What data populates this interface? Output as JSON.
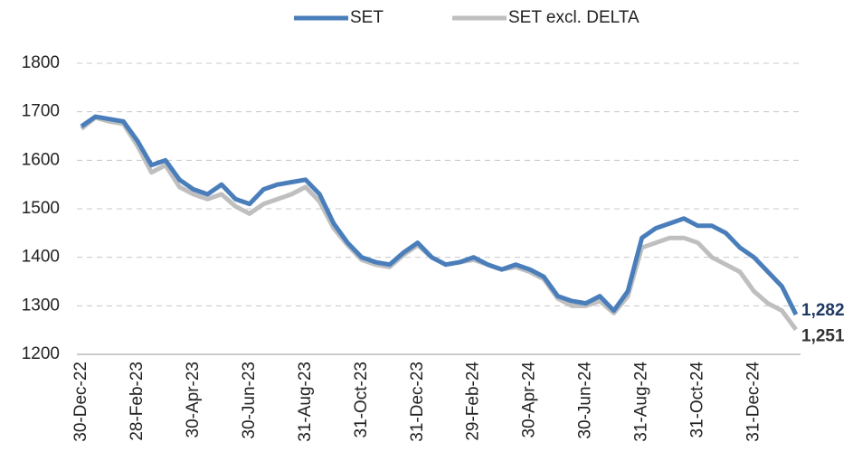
{
  "chart_data": {
    "type": "line",
    "categories": [
      "30-Dec-22",
      null,
      null,
      null,
      "28-Feb-23",
      null,
      null,
      null,
      "30-Apr-23",
      null,
      null,
      null,
      "30-Jun-23",
      null,
      null,
      null,
      "31-Aug-23",
      null,
      null,
      null,
      "31-Oct-23",
      null,
      null,
      null,
      "31-Dec-23",
      null,
      null,
      null,
      "29-Feb-24",
      null,
      null,
      null,
      "30-Apr-24",
      null,
      null,
      null,
      "30-Jun-24",
      null,
      null,
      null,
      "31-Aug-24",
      null,
      null,
      null,
      "31-Oct-24",
      null,
      null,
      null,
      "31-Dec-24",
      null,
      null,
      null
    ],
    "series": [
      {
        "name": "SET",
        "color": "#4a7ebb",
        "label_color": "#1f3864",
        "values": [
          1670,
          1690,
          1685,
          1680,
          1640,
          1590,
          1600,
          1560,
          1540,
          1530,
          1550,
          1520,
          1510,
          1540,
          1550,
          1555,
          1560,
          1530,
          1470,
          1430,
          1400,
          1390,
          1385,
          1410,
          1430,
          1400,
          1385,
          1390,
          1400,
          1385,
          1375,
          1385,
          1375,
          1360,
          1320,
          1310,
          1305,
          1320,
          1290,
          1330,
          1440,
          1460,
          1470,
          1480,
          1465,
          1465,
          1450,
          1420,
          1400,
          1370,
          1340,
          1282
        ],
        "value_labels": [
          null,
          null,
          null,
          null,
          null,
          null,
          null,
          null,
          null,
          null,
          null,
          null,
          null,
          null,
          null,
          null,
          null,
          null,
          null,
          null,
          null,
          null,
          null,
          null,
          null,
          null,
          null,
          null,
          null,
          null,
          null,
          null,
          null,
          null,
          null,
          null,
          null,
          null,
          null,
          null,
          null,
          null,
          null,
          null,
          null,
          null,
          null,
          null,
          null,
          null,
          null,
          "1,282"
        ]
      },
      {
        "name": "SET excl. DELTA",
        "color": "#bfbfbf",
        "label_color": "#333333",
        "values": [
          1665,
          1688,
          1680,
          1675,
          1630,
          1575,
          1590,
          1545,
          1530,
          1520,
          1530,
          1505,
          1490,
          1510,
          1520,
          1530,
          1545,
          1515,
          1460,
          1425,
          1395,
          1385,
          1380,
          1405,
          1425,
          1400,
          1385,
          1390,
          1395,
          1385,
          1375,
          1380,
          1370,
          1355,
          1315,
          1300,
          1300,
          1310,
          1285,
          1320,
          1420,
          1430,
          1440,
          1440,
          1430,
          1400,
          1385,
          1370,
          1330,
          1305,
          1290,
          1251
        ],
        "value_labels": [
          null,
          null,
          null,
          null,
          null,
          null,
          null,
          null,
          null,
          null,
          null,
          null,
          null,
          null,
          null,
          null,
          null,
          null,
          null,
          null,
          null,
          null,
          null,
          null,
          null,
          null,
          null,
          null,
          null,
          null,
          null,
          null,
          null,
          null,
          null,
          null,
          null,
          null,
          null,
          null,
          null,
          null,
          null,
          null,
          null,
          null,
          null,
          null,
          null,
          null,
          null,
          "1,251"
        ]
      }
    ],
    "ylim": [
      1200,
      1800
    ],
    "yticks": [
      1200,
      1300,
      1400,
      1500,
      1600,
      1700,
      1800
    ],
    "grid": true,
    "legend": "top"
  }
}
